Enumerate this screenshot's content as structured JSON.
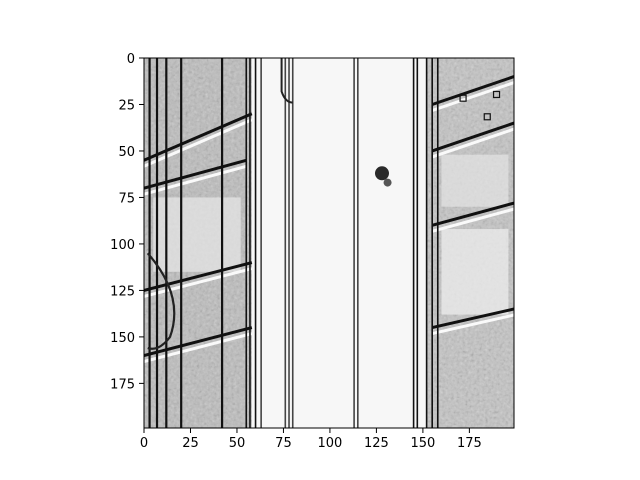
{
  "chart_data": {
    "type": "heatmap",
    "description_visible": "grayscale edge-filtered image shown with imshow",
    "colormap": "gray",
    "grid": false,
    "xlim": [
      0,
      199
    ],
    "ylim": [
      199,
      0
    ],
    "x_ticks": [
      0,
      25,
      50,
      75,
      100,
      125,
      150,
      175
    ],
    "y_ticks": [
      0,
      25,
      50,
      75,
      100,
      125,
      150,
      175
    ],
    "x_tick_labels": [
      "0",
      "25",
      "50",
      "75",
      "100",
      "125",
      "150",
      "175"
    ],
    "y_tick_labels": [
      "0",
      "25",
      "50",
      "75",
      "100",
      "125",
      "150",
      "175"
    ],
    "vertical_edges_x": [
      3,
      7,
      12,
      20,
      42,
      55,
      57,
      60,
      63,
      76,
      78,
      80,
      113,
      115,
      145,
      147,
      152,
      155,
      158
    ],
    "diagonal_bands": [
      {
        "x": [
          0,
          58
        ],
        "y": [
          55,
          30
        ]
      },
      {
        "x": [
          0,
          55
        ],
        "y": [
          70,
          55
        ]
      },
      {
        "x": [
          0,
          58
        ],
        "y": [
          125,
          110
        ]
      },
      {
        "x": [
          0,
          58
        ],
        "y": [
          160,
          145
        ]
      },
      {
        "x": [
          155,
          199
        ],
        "y": [
          25,
          10
        ]
      },
      {
        "x": [
          155,
          199
        ],
        "y": [
          50,
          35
        ]
      },
      {
        "x": [
          155,
          199
        ],
        "y": [
          90,
          78
        ]
      },
      {
        "x": [
          155,
          199
        ],
        "y": [
          145,
          135
        ]
      }
    ],
    "blob": {
      "x": 128,
      "y": 62
    }
  }
}
